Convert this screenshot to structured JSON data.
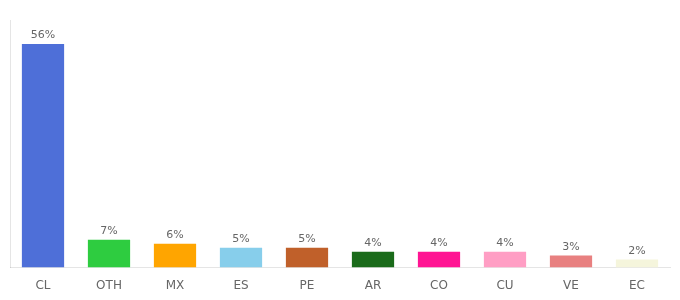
{
  "chart_data": {
    "type": "bar",
    "categories": [
      "CL",
      "OTH",
      "MX",
      "ES",
      "PE",
      "AR",
      "CO",
      "CU",
      "VE",
      "EC"
    ],
    "values": [
      56,
      7,
      6,
      5,
      5,
      4,
      4,
      4,
      3,
      2
    ],
    "value_labels": [
      "56%",
      "7%",
      "6%",
      "5%",
      "5%",
      "4%",
      "4%",
      "4%",
      "3%",
      "2%"
    ],
    "colors": [
      "#4E6FD8",
      "#2ECC40",
      "#FFA500",
      "#87CEEB",
      "#C0602A",
      "#1A6B1A",
      "#FF1493",
      "#FF9EC4",
      "#E88080",
      "#F5F5DC"
    ],
    "ylim": [
      0,
      62
    ],
    "data_labels": true,
    "tick_labels": "x",
    "grid": false
  }
}
